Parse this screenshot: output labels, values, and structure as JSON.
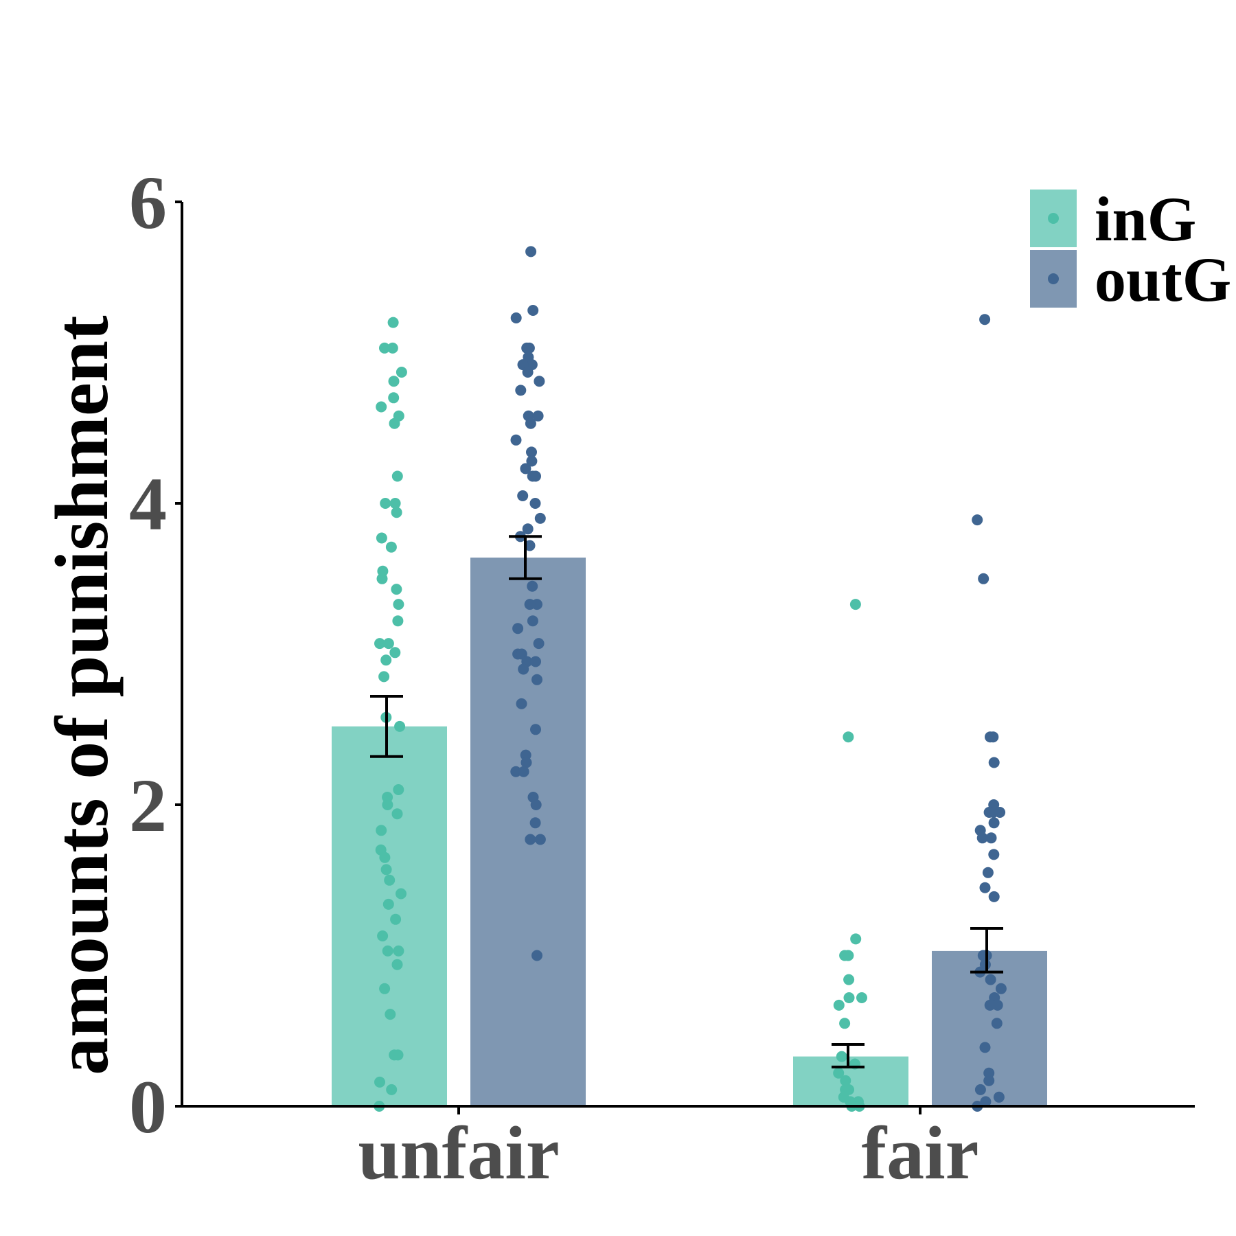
{
  "chart_data": {
    "type": "bar",
    "categories": [
      "unfair",
      "fair"
    ],
    "ylabel": "amounts of punishment",
    "xlabel": "",
    "ylim": [
      0,
      6
    ],
    "yticks": [
      0,
      2,
      4,
      6
    ],
    "grid": false,
    "legend_position": "top-right",
    "series": [
      {
        "name": "inG",
        "bar_color": "#82d2c3",
        "point_color": "#4dbfa8",
        "values": [
          2.52,
          0.33
        ],
        "error": [
          [
            2.32,
            2.72
          ],
          [
            0.26,
            0.41
          ]
        ],
        "points": [
          [
            5.2,
            5.03,
            5.03,
            4.87,
            4.81,
            4.7,
            4.64,
            4.58,
            4.53,
            4.18,
            4.0,
            4.0,
            3.94,
            3.77,
            3.71,
            3.55,
            3.5,
            3.43,
            3.33,
            3.22,
            3.07,
            3.07,
            3.01,
            2.96,
            2.85,
            2.58,
            2.52,
            2.1,
            2.05,
            2.0,
            1.94,
            1.83,
            1.7,
            1.65,
            1.57,
            1.5,
            1.41,
            1.34,
            1.24,
            1.13,
            1.03,
            1.03,
            0.94,
            0.78,
            0.61,
            0.34,
            0.34,
            0.16,
            0.11,
            0.0
          ],
          [
            3.33,
            2.45,
            1.11,
            1.0,
            1.0,
            1.0,
            0.84,
            0.72,
            0.72,
            0.67,
            0.55,
            0.33,
            0.28,
            0.22,
            0.17,
            0.11,
            0.11,
            0.06,
            0.03,
            0.03,
            0.0,
            0.0
          ]
        ]
      },
      {
        "name": "outG",
        "bar_color": "#7f97b2",
        "point_color": "#3f6591",
        "values": [
          3.64,
          1.03
        ],
        "error": [
          [
            3.5,
            3.78
          ],
          [
            0.89,
            1.18
          ]
        ],
        "points": [
          [
            5.67,
            5.28,
            5.23,
            5.03,
            5.03,
            4.97,
            4.92,
            4.92,
            4.87,
            4.81,
            4.75,
            4.58,
            4.58,
            4.53,
            4.42,
            4.34,
            4.28,
            4.23,
            4.18,
            4.18,
            4.05,
            4.0,
            3.9,
            3.83,
            3.78,
            3.72,
            3.45,
            3.33,
            3.33,
            3.22,
            3.17,
            3.07,
            3.0,
            3.0,
            2.95,
            2.95,
            2.9,
            2.83,
            2.67,
            2.5,
            2.33,
            2.28,
            2.22,
            2.22,
            2.05,
            2.0,
            1.88,
            1.77,
            1.77,
            1.0
          ],
          [
            5.22,
            3.89,
            3.5,
            2.45,
            2.45,
            2.28,
            2.0,
            1.95,
            1.95,
            1.95,
            1.88,
            1.83,
            1.78,
            1.78,
            1.67,
            1.55,
            1.45,
            1.39,
            1.0,
            1.0,
            1.0,
            0.94,
            0.89,
            0.84,
            0.78,
            0.72,
            0.67,
            0.67,
            0.55,
            0.39,
            0.22,
            0.17,
            0.11,
            0.06,
            0.03,
            0.0
          ]
        ]
      }
    ]
  }
}
